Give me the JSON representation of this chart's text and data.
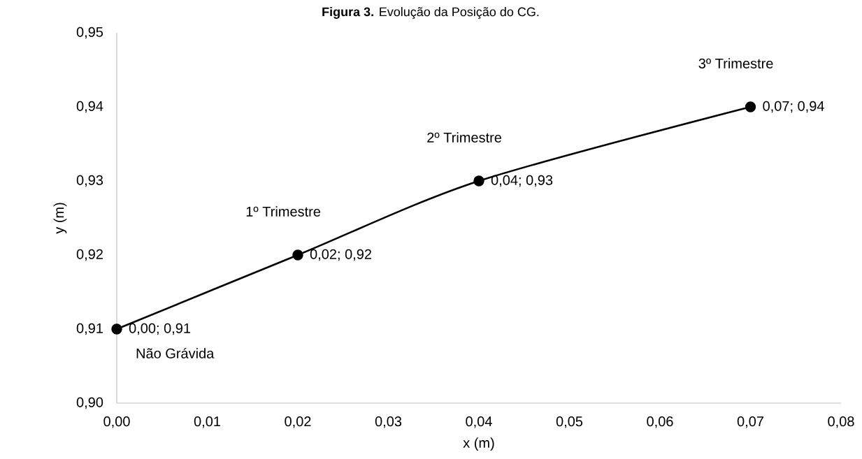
{
  "chart_data": {
    "type": "line",
    "title": "**Figura 3.** Evolução da Posição do CG.",
    "xlabel": "x (m)",
    "ylabel": "y (m)",
    "x": [
      0.0,
      0.02,
      0.04,
      0.07
    ],
    "series": [
      {
        "color": "#000000",
        "values": [
          0.91,
          0.92,
          0.93,
          0.94
        ],
        "value_labels": [
          "0,00; 0,91",
          "0,02; 0,92",
          "0,04; 0,93",
          "0,07; 0,94"
        ]
      }
    ],
    "annotations": [
      {
        "text": "Não Grávida",
        "x": 0.0,
        "y": 0.91
      },
      {
        "text": "1º Trimestre",
        "x": 0.02,
        "y": 0.92
      },
      {
        "text": "2º Trimestre",
        "x": 0.04,
        "y": 0.93
      },
      {
        "text": "3º Trimestre",
        "x": 0.07,
        "y": 0.94
      }
    ],
    "xlim": [
      0.0,
      0.08
    ],
    "xticks": [
      {
        "value": 0.0,
        "label": "0,00"
      },
      {
        "value": 0.01,
        "label": "0,01"
      },
      {
        "value": 0.02,
        "label": "0,02"
      },
      {
        "value": 0.03,
        "label": "0,03"
      },
      {
        "value": 0.04,
        "label": "0,04"
      },
      {
        "value": 0.05,
        "label": "0,05"
      },
      {
        "value": 0.06,
        "label": "0,06"
      },
      {
        "value": 0.07,
        "label": "0,07"
      },
      {
        "value": 0.08,
        "label": "0,08"
      }
    ],
    "ylim": [
      0.9,
      0.95
    ],
    "yticks": [
      {
        "value": 0.9,
        "label": "0,90"
      },
      {
        "value": 0.91,
        "label": "0,91"
      },
      {
        "value": 0.92,
        "label": "0,92"
      },
      {
        "value": 0.93,
        "label": "0,93"
      },
      {
        "value": 0.94,
        "label": "0,94"
      },
      {
        "value": 0.95,
        "label": "0,95"
      }
    ],
    "marker": "circle",
    "line_style": "solid",
    "grid": false
  }
}
